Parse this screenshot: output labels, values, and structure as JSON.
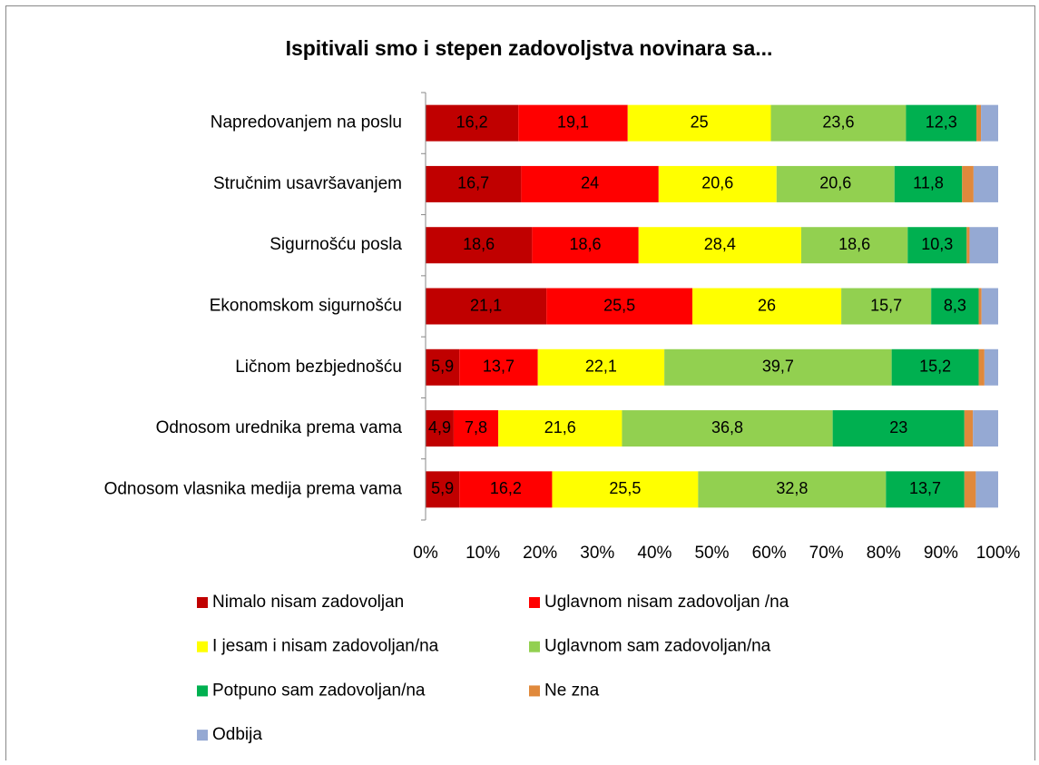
{
  "chart_data": {
    "type": "stacked-bar-horizontal",
    "title": "Ispitivali smo i stepen zadovoljstva novinara sa...",
    "categories": [
      "Napredovanjem na poslu",
      "Stručnim usavršavanjem",
      "Sigurnošću posla",
      "Ekonomskom sigurnošću",
      "Ličnom bezbjednošću",
      "Odnosom urednika prema vama",
      "Odnosom vlasnika medija prema vama"
    ],
    "series": [
      {
        "name": "Nimalo nisam zadovoljan",
        "color": "#c00000",
        "values": [
          16.2,
          16.7,
          18.6,
          21.1,
          5.9,
          4.9,
          5.9
        ],
        "value_labels": [
          "16,2",
          "16,7",
          "18,6",
          "21,1",
          "5,9",
          "4,9",
          "5,9"
        ]
      },
      {
        "name": "Uglavnom nisam zadovoljan /na",
        "color": "#ff0000",
        "values": [
          19.1,
          24,
          18.6,
          25.5,
          13.7,
          7.8,
          16.2
        ],
        "value_labels": [
          "19,1",
          "24",
          "18,6",
          "25,5",
          "13,7",
          "7,8",
          "16,2"
        ]
      },
      {
        "name": "I jesam i nisam zadovoljan/na",
        "color": "#ffff00",
        "values": [
          25,
          20.6,
          28.4,
          26,
          22.1,
          21.6,
          25.5
        ],
        "value_labels": [
          "25",
          "20,6",
          "28,4",
          "26",
          "22,1",
          "21,6",
          "25,5"
        ]
      },
      {
        "name": "Uglavnom sam zadovoljan/na",
        "color": "#92d050",
        "values": [
          23.6,
          20.6,
          18.6,
          15.7,
          39.7,
          36.8,
          32.8
        ],
        "value_labels": [
          "23,6",
          "20,6",
          "18,6",
          "15,7",
          "39,7",
          "36,8",
          "32,8"
        ]
      },
      {
        "name": "Potpuno sam zadovoljan/na",
        "color": "#00b050",
        "values": [
          12.3,
          11.8,
          10.3,
          8.3,
          15.2,
          23,
          13.7
        ],
        "value_labels": [
          "12,3",
          "11,8",
          "10,3",
          "8,3",
          "15,2",
          "23",
          "13,7"
        ]
      },
      {
        "name": "Ne zna",
        "color": "#e0893c",
        "values": [
          0.8,
          2.0,
          0.5,
          0.5,
          1.0,
          1.5,
          2.0
        ]
      },
      {
        "name": "Odbija",
        "color": "#95a9d3",
        "values": [
          3.0,
          4.3,
          5.0,
          2.9,
          2.4,
          4.4,
          3.9
        ]
      }
    ],
    "xlim": [
      0,
      100
    ],
    "xticks": [
      {
        "value": 0,
        "label": "0%"
      },
      {
        "value": 10,
        "label": "10%"
      },
      {
        "value": 20,
        "label": "20%"
      },
      {
        "value": 30,
        "label": "30%"
      },
      {
        "value": 40,
        "label": "40%"
      },
      {
        "value": 50,
        "label": "50%"
      },
      {
        "value": 60,
        "label": "60%"
      },
      {
        "value": 70,
        "label": "70%"
      },
      {
        "value": 80,
        "label": "80%"
      },
      {
        "value": 90,
        "label": "90%"
      },
      {
        "value": 100,
        "label": "100%"
      }
    ],
    "grid": false,
    "legend": "bottom"
  }
}
